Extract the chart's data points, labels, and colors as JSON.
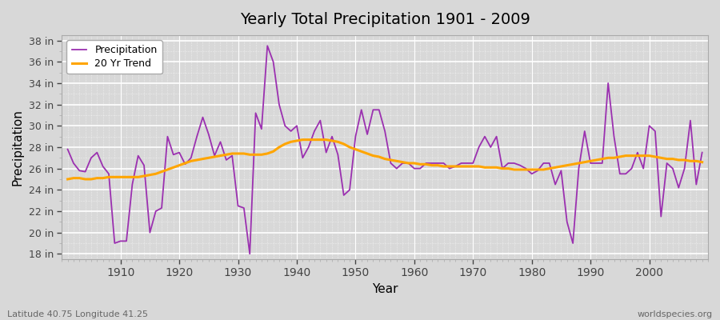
{
  "title": "Yearly Total Precipitation 1901 - 2009",
  "xlabel": "Year",
  "ylabel": "Precipitation",
  "subtitle": "Latitude 40.75 Longitude 41.25",
  "watermark": "worldspecies.org",
  "precip_color": "#9B30B0",
  "trend_color": "#FFA500",
  "bg_color": "#D8D8D8",
  "plot_bg_color": "#D8D8D8",
  "ylim": [
    17.5,
    38.5
  ],
  "yticks": [
    18,
    20,
    22,
    24,
    26,
    28,
    30,
    32,
    34,
    36,
    38
  ],
  "xlim": [
    1900,
    2010
  ],
  "years": [
    1901,
    1902,
    1903,
    1904,
    1905,
    1906,
    1907,
    1908,
    1909,
    1910,
    1911,
    1912,
    1913,
    1914,
    1915,
    1916,
    1917,
    1918,
    1919,
    1920,
    1921,
    1922,
    1923,
    1924,
    1925,
    1926,
    1927,
    1928,
    1929,
    1930,
    1931,
    1932,
    1933,
    1934,
    1935,
    1936,
    1937,
    1938,
    1939,
    1940,
    1941,
    1942,
    1943,
    1944,
    1945,
    1946,
    1947,
    1948,
    1949,
    1950,
    1951,
    1952,
    1953,
    1954,
    1955,
    1956,
    1957,
    1958,
    1959,
    1960,
    1961,
    1962,
    1963,
    1964,
    1965,
    1966,
    1967,
    1968,
    1969,
    1970,
    1971,
    1972,
    1973,
    1974,
    1975,
    1976,
    1977,
    1978,
    1979,
    1980,
    1981,
    1982,
    1983,
    1984,
    1985,
    1986,
    1987,
    1988,
    1989,
    1990,
    1991,
    1992,
    1993,
    1994,
    1995,
    1996,
    1997,
    1998,
    1999,
    2000,
    2001,
    2002,
    2003,
    2004,
    2005,
    2006,
    2007,
    2008,
    2009
  ],
  "precip": [
    27.8,
    26.5,
    25.8,
    25.7,
    27.0,
    27.5,
    26.2,
    25.5,
    19.0,
    19.2,
    19.2,
    24.5,
    27.2,
    26.3,
    20.0,
    22.0,
    22.3,
    29.0,
    27.3,
    27.5,
    26.4,
    27.0,
    29.0,
    30.8,
    29.2,
    27.2,
    28.5,
    26.8,
    27.2,
    22.5,
    22.3,
    18.0,
    31.2,
    29.7,
    37.5,
    36.0,
    32.0,
    30.0,
    29.5,
    30.0,
    27.0,
    28.0,
    29.5,
    30.5,
    27.5,
    29.0,
    27.3,
    23.5,
    24.0,
    29.0,
    31.5,
    29.2,
    31.5,
    31.5,
    29.5,
    26.5,
    26.0,
    26.5,
    26.5,
    26.0,
    26.0,
    26.5,
    26.5,
    26.5,
    26.5,
    26.0,
    26.2,
    26.5,
    26.5,
    26.5,
    28.0,
    29.0,
    28.0,
    29.0,
    26.0,
    26.5,
    26.5,
    26.3,
    26.0,
    25.5,
    25.8,
    26.5,
    26.5,
    24.5,
    25.8,
    21.0,
    19.0,
    26.0,
    29.5,
    26.5,
    26.5,
    26.5,
    34.0,
    29.0,
    25.5,
    25.5,
    26.0,
    27.5,
    26.0,
    30.0,
    29.5,
    21.5,
    26.5,
    26.0,
    24.2,
    26.0,
    30.5,
    24.5,
    27.5
  ],
  "trend": [
    25.0,
    25.1,
    25.1,
    25.0,
    25.0,
    25.1,
    25.1,
    25.2,
    25.2,
    25.2,
    25.2,
    25.2,
    25.2,
    25.3,
    25.4,
    25.5,
    25.7,
    25.9,
    26.1,
    26.3,
    26.5,
    26.7,
    26.8,
    26.9,
    27.0,
    27.1,
    27.2,
    27.3,
    27.4,
    27.4,
    27.4,
    27.3,
    27.3,
    27.3,
    27.4,
    27.6,
    28.0,
    28.3,
    28.5,
    28.6,
    28.7,
    28.7,
    28.7,
    28.7,
    28.7,
    28.6,
    28.5,
    28.3,
    28.0,
    27.8,
    27.6,
    27.4,
    27.2,
    27.1,
    26.9,
    26.8,
    26.7,
    26.6,
    26.5,
    26.5,
    26.4,
    26.4,
    26.3,
    26.3,
    26.2,
    26.2,
    26.2,
    26.2,
    26.2,
    26.2,
    26.2,
    26.1,
    26.1,
    26.1,
    26.0,
    26.0,
    25.9,
    25.9,
    25.9,
    25.9,
    25.9,
    25.9,
    26.0,
    26.1,
    26.2,
    26.3,
    26.4,
    26.5,
    26.6,
    26.7,
    26.8,
    26.9,
    27.0,
    27.0,
    27.1,
    27.2,
    27.2,
    27.2,
    27.2,
    27.2,
    27.1,
    27.0,
    26.9,
    26.9,
    26.8,
    26.8,
    26.7,
    26.7,
    26.6
  ]
}
